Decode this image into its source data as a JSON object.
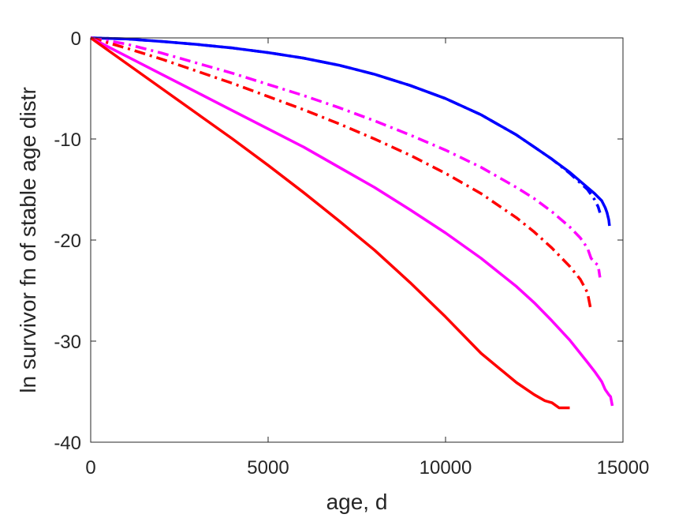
{
  "chart_data": {
    "type": "line",
    "title": "",
    "xlabel": "age, d",
    "ylabel": "ln survivor fn of stable age distr",
    "xlim": [
      0,
      15000
    ],
    "ylim": [
      -40,
      0
    ],
    "xticks": [
      0,
      5000,
      10000,
      15000
    ],
    "xtick_labels": [
      "0",
      "5000",
      "10000",
      "15000"
    ],
    "yticks": [
      -40,
      -30,
      -20,
      -10,
      0
    ],
    "ytick_labels": [
      "-40",
      "-30",
      "-20",
      "-10",
      "0"
    ],
    "grid": false,
    "legend": null,
    "series": [
      {
        "color": "#0000ff",
        "style": "solid",
        "x": [
          0,
          1000,
          2000,
          3000,
          4000,
          5000,
          6000,
          7000,
          8000,
          9000,
          10000,
          11000,
          12000,
          12500,
          13000,
          13500,
          14000,
          14200,
          14400,
          14500,
          14550,
          14600,
          14620
        ],
        "y": [
          0,
          -0.1,
          -0.35,
          -0.65,
          -1.0,
          -1.45,
          -2.0,
          -2.7,
          -3.6,
          -4.7,
          -6.0,
          -7.6,
          -9.6,
          -10.8,
          -12.0,
          -13.3,
          -14.8,
          -15.4,
          -16.1,
          -16.8,
          -17.3,
          -18.0,
          -18.6
        ]
      },
      {
        "color": "#0000ff",
        "style": "dashdot",
        "x": [
          0,
          1000,
          2000,
          3000,
          4000,
          5000,
          6000,
          7000,
          8000,
          9000,
          10000,
          11000,
          12000,
          12500,
          13000,
          13500,
          14000,
          14100,
          14200,
          14300,
          14350
        ],
        "y": [
          0,
          -0.1,
          -0.35,
          -0.65,
          -1.0,
          -1.45,
          -2.0,
          -2.7,
          -3.6,
          -4.7,
          -6.0,
          -7.6,
          -9.6,
          -10.8,
          -12.0,
          -13.4,
          -15.0,
          -15.5,
          -16.0,
          -16.7,
          -17.3
        ]
      },
      {
        "color": "#ff00ff",
        "style": "dashdot",
        "x": [
          0,
          1000,
          2000,
          3000,
          4000,
          5000,
          6000,
          7000,
          8000,
          9000,
          10000,
          11000,
          12000,
          12500,
          13000,
          13500,
          13800,
          14000,
          14100,
          14200,
          14300,
          14350
        ],
        "y": [
          0,
          -0.6,
          -1.5,
          -2.5,
          -3.5,
          -4.6,
          -5.7,
          -6.9,
          -8.2,
          -9.6,
          -11.1,
          -12.8,
          -14.8,
          -15.9,
          -17.2,
          -18.7,
          -19.8,
          -20.8,
          -21.8,
          -22.2,
          -22.5,
          -23.7
        ]
      },
      {
        "color": "#ff0000",
        "style": "dashdot",
        "x": [
          0,
          1000,
          2000,
          3000,
          4000,
          5000,
          6000,
          7000,
          8000,
          9000,
          10000,
          11000,
          12000,
          12500,
          13000,
          13500,
          13800,
          14000,
          14100
        ],
        "y": [
          0,
          -1.0,
          -2.1,
          -3.3,
          -4.5,
          -5.8,
          -7.1,
          -8.5,
          -10.0,
          -11.6,
          -13.4,
          -15.4,
          -17.8,
          -19.2,
          -20.8,
          -22.6,
          -23.9,
          -25.2,
          -27.0
        ]
      },
      {
        "color": "#ff00ff",
        "style": "solid",
        "x": [
          0,
          1000,
          2000,
          3000,
          4000,
          5000,
          6000,
          7000,
          8000,
          9000,
          10000,
          11000,
          12000,
          12500,
          13000,
          13500,
          14000,
          14200,
          14400,
          14500,
          14600,
          14650,
          14700
        ],
        "y": [
          0,
          -1.8,
          -3.6,
          -5.4,
          -7.2,
          -9.0,
          -10.8,
          -12.8,
          -14.8,
          -17.0,
          -19.3,
          -21.8,
          -24.6,
          -26.2,
          -28.0,
          -29.9,
          -32.1,
          -33.0,
          -34.0,
          -34.8,
          -35.3,
          -35.5,
          -36.4
        ]
      },
      {
        "color": "#ff0000",
        "style": "solid",
        "x": [
          0,
          1000,
          2000,
          3000,
          4000,
          5000,
          6000,
          7000,
          8000,
          9000,
          10000,
          11000,
          12000,
          12500,
          12800,
          13000,
          13200,
          13300,
          13500
        ],
        "y": [
          0,
          -2.5,
          -5.0,
          -7.5,
          -10.0,
          -12.6,
          -15.3,
          -18.1,
          -21.0,
          -24.2,
          -27.6,
          -31.2,
          -34.1,
          -35.3,
          -35.9,
          -36.1,
          -36.6,
          -36.6,
          -36.6
        ]
      }
    ]
  }
}
